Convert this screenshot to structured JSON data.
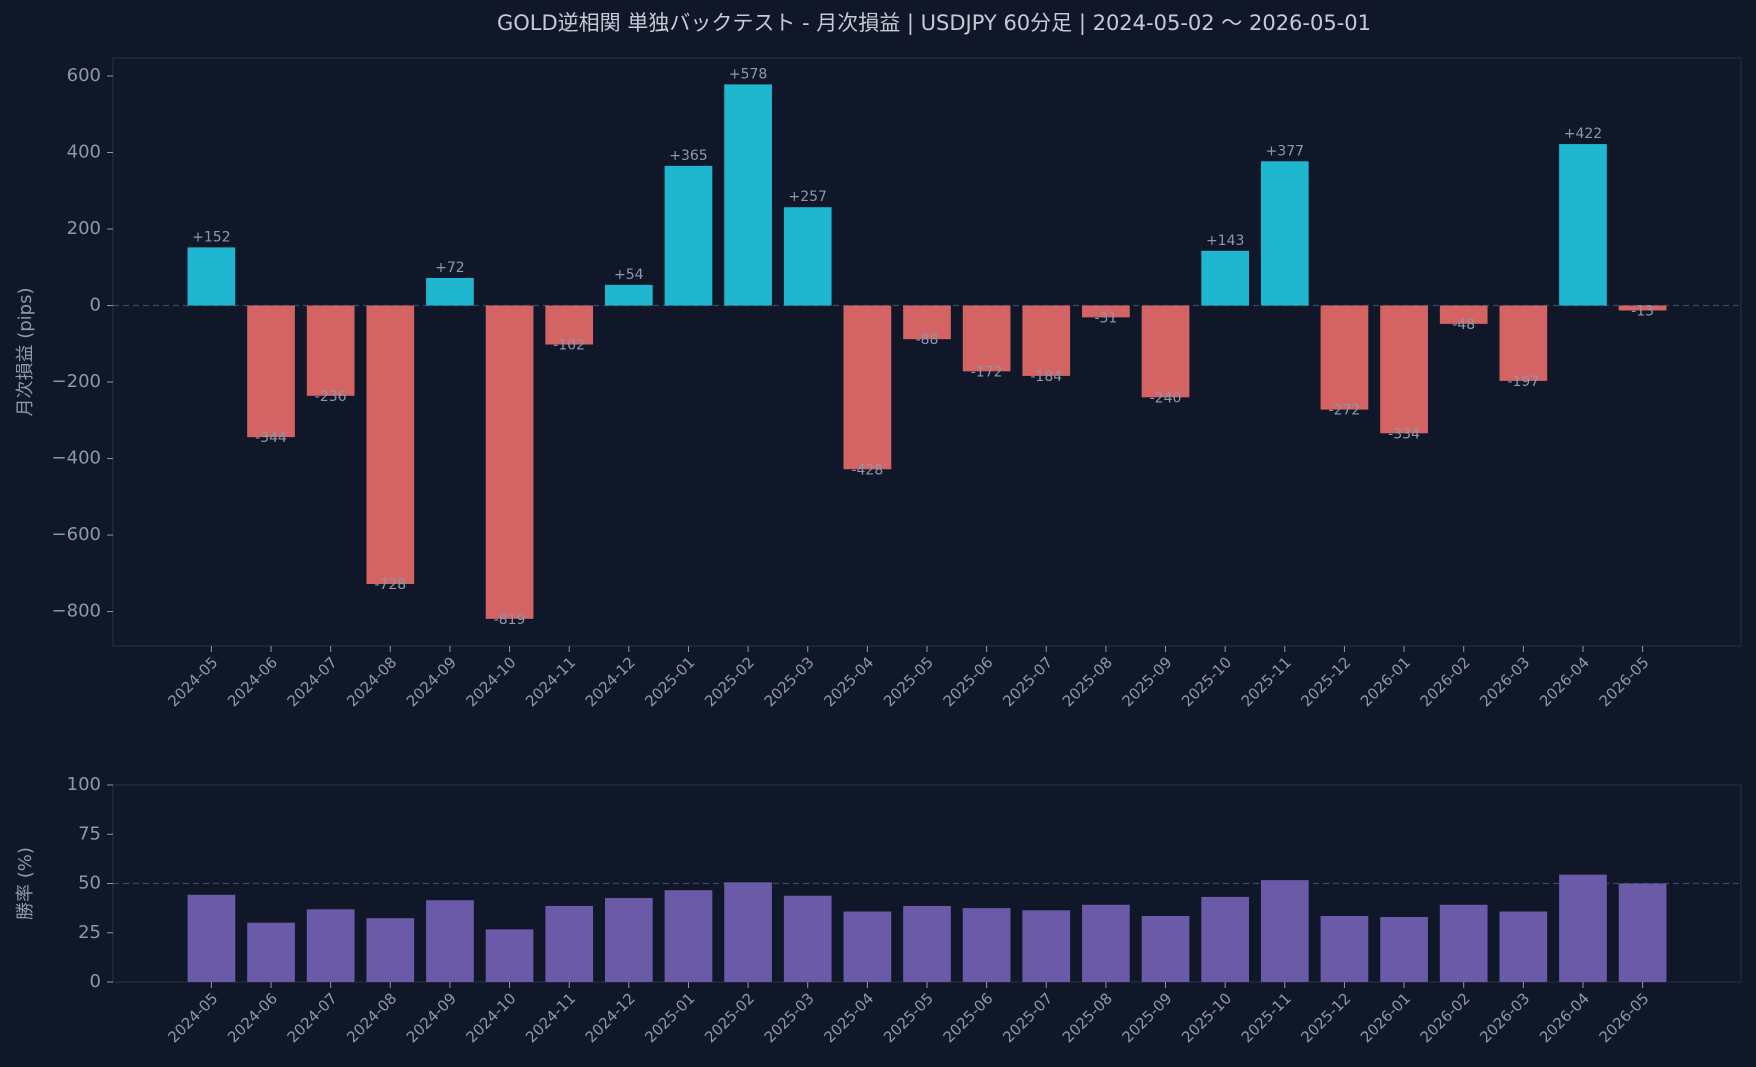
{
  "title": "GOLD逆相関 単独バックテスト - 月次損益 | USDJPY 60分足 | 2024-05-02 〜 2026-05-01",
  "chart_data": [
    {
      "type": "bar",
      "ylabel": "月次損益 (pips)",
      "categories": [
        "2024-05",
        "2024-06",
        "2024-07",
        "2024-08",
        "2024-09",
        "2024-10",
        "2024-11",
        "2024-12",
        "2025-01",
        "2025-02",
        "2025-03",
        "2025-04",
        "2025-05",
        "2025-06",
        "2025-07",
        "2025-08",
        "2025-09",
        "2025-10",
        "2025-11",
        "2025-12",
        "2026-01",
        "2026-02",
        "2026-03",
        "2026-04",
        "2026-05"
      ],
      "values": [
        152,
        -344,
        -236,
        -728,
        72,
        -819,
        -102,
        54,
        365,
        578,
        257,
        -428,
        -88,
        -172,
        -184,
        -31,
        -240,
        143,
        377,
        -272,
        -334,
        -48,
        -197,
        422,
        -13
      ],
      "value_labels": [
        "+152",
        "-344",
        "-236",
        "-728",
        "+72",
        "-819",
        "-102",
        "+54",
        "+365",
        "+578",
        "+257",
        "-428",
        "-88",
        "-172",
        "-184",
        "-31",
        "-240",
        "+143",
        "+377",
        "-272",
        "-334",
        "-48",
        "-197",
        "+422",
        "-13"
      ],
      "positive_color": "#1fb6cf",
      "negative_color": "#d46464",
      "ylim": [
        -890,
        647
      ],
      "yticks": [
        {
          "value": -800,
          "label": "−800"
        },
        {
          "value": -600,
          "label": "−600"
        },
        {
          "value": -400,
          "label": "−400"
        },
        {
          "value": -200,
          "label": "−200"
        },
        0,
        200,
        400,
        600
      ],
      "reference_line": 0
    },
    {
      "type": "bar",
      "ylabel": "勝率 (%)",
      "categories": [
        "2024-05",
        "2024-06",
        "2024-07",
        "2024-08",
        "2024-09",
        "2024-10",
        "2024-11",
        "2024-12",
        "2025-01",
        "2025-02",
        "2025-03",
        "2025-04",
        "2025-05",
        "2025-06",
        "2025-07",
        "2025-08",
        "2025-09",
        "2025-10",
        "2025-11",
        "2025-12",
        "2026-01",
        "2026-02",
        "2026-03",
        "2026-04",
        "2026-05"
      ],
      "values": [
        44.3,
        30.1,
        36.9,
        32.4,
        41.5,
        26.7,
        38.6,
        42.6,
        46.6,
        50.6,
        43.8,
        35.8,
        38.6,
        37.5,
        36.4,
        39.2,
        33.5,
        43.2,
        51.7,
        33.5,
        33,
        39.2,
        35.8,
        54.5,
        50
      ],
      "color": "#6a5aa8",
      "ylim": [
        0,
        100
      ],
      "yticks": [
        0,
        25,
        50,
        75,
        100
      ],
      "reference_line": 50
    }
  ]
}
